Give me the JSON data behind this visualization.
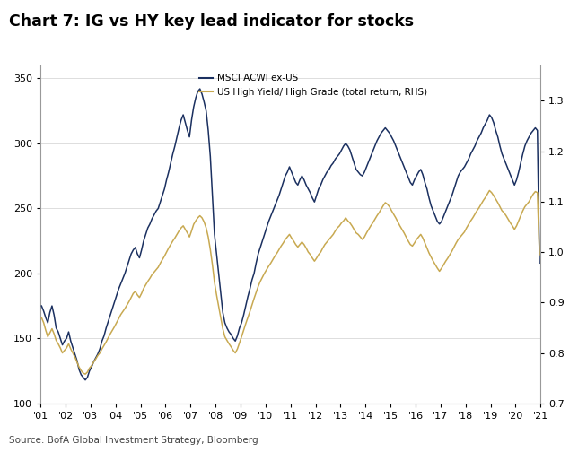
{
  "title": "Chart 7: IG vs HY key lead indicator for stocks",
  "source": "Source: BofA Global Investment Strategy, Bloomberg",
  "legend1": "MSCI ACWI ex-US",
  "legend2": "US High Yield/ High Grade (total return, RHS)",
  "color1": "#1b3060",
  "color2": "#c8a951",
  "ylim_left": [
    100,
    360
  ],
  "ylim_right": [
    0.7,
    1.37
  ],
  "yticks_left": [
    100,
    150,
    200,
    250,
    300,
    350
  ],
  "yticks_right": [
    0.7,
    0.8,
    0.9,
    1.0,
    1.1,
    1.2,
    1.3
  ],
  "xtick_labels": [
    "'01",
    "'02",
    "'03",
    "'04",
    "'05",
    "'06",
    "'07",
    "'08",
    "'09",
    "'10",
    "'11",
    "'12",
    "'13",
    "'14",
    "'15",
    "'16",
    "'17",
    "'18",
    "'19",
    "'20",
    "'21"
  ],
  "msci_monthly": [
    175,
    171,
    166,
    162,
    170,
    175,
    168,
    158,
    155,
    150,
    145,
    148,
    150,
    155,
    148,
    143,
    138,
    133,
    126,
    122,
    120,
    118,
    120,
    125,
    128,
    132,
    135,
    138,
    142,
    148,
    152,
    158,
    163,
    168,
    173,
    178,
    183,
    188,
    192,
    196,
    200,
    205,
    210,
    215,
    218,
    220,
    215,
    212,
    218,
    225,
    230,
    235,
    238,
    242,
    245,
    248,
    250,
    255,
    260,
    265,
    272,
    278,
    285,
    292,
    298,
    305,
    312,
    318,
    322,
    316,
    310,
    305,
    318,
    328,
    335,
    340,
    342,
    338,
    332,
    325,
    310,
    290,
    260,
    230,
    215,
    200,
    185,
    170,
    162,
    158,
    155,
    153,
    150,
    148,
    152,
    158,
    162,
    168,
    175,
    182,
    188,
    195,
    200,
    208,
    215,
    220,
    225,
    230,
    235,
    240,
    244,
    248,
    252,
    256,
    260,
    265,
    270,
    275,
    278,
    282,
    278,
    274,
    270,
    268,
    272,
    275,
    272,
    268,
    265,
    262,
    258,
    255,
    260,
    265,
    268,
    272,
    275,
    278,
    280,
    283,
    285,
    288,
    290,
    292,
    295,
    298,
    300,
    298,
    295,
    290,
    285,
    280,
    278,
    276,
    275,
    278,
    282,
    286,
    290,
    294,
    298,
    302,
    305,
    308,
    310,
    312,
    310,
    308,
    305,
    302,
    298,
    294,
    290,
    286,
    282,
    278,
    274,
    270,
    268,
    272,
    275,
    278,
    280,
    276,
    270,
    265,
    258,
    252,
    248,
    244,
    240,
    238,
    240,
    244,
    248,
    252,
    256,
    260,
    265,
    270,
    275,
    278,
    280,
    282,
    285,
    288,
    292,
    295,
    298,
    302,
    305,
    308,
    312,
    315,
    318,
    322,
    320,
    316,
    310,
    305,
    298,
    292,
    288,
    284,
    280,
    276,
    272,
    268,
    272,
    278,
    285,
    292,
    298,
    302,
    305,
    308,
    310,
    312,
    310,
    208
  ],
  "hyhg_monthly": [
    0.87,
    0.86,
    0.845,
    0.832,
    0.84,
    0.848,
    0.838,
    0.825,
    0.818,
    0.81,
    0.8,
    0.805,
    0.81,
    0.818,
    0.808,
    0.8,
    0.792,
    0.782,
    0.772,
    0.765,
    0.76,
    0.758,
    0.762,
    0.77,
    0.775,
    0.782,
    0.788,
    0.795,
    0.8,
    0.808,
    0.815,
    0.822,
    0.83,
    0.838,
    0.845,
    0.852,
    0.86,
    0.868,
    0.876,
    0.882,
    0.888,
    0.895,
    0.902,
    0.91,
    0.918,
    0.922,
    0.915,
    0.91,
    0.918,
    0.928,
    0.935,
    0.942,
    0.948,
    0.955,
    0.96,
    0.965,
    0.97,
    0.978,
    0.985,
    0.992,
    1.0,
    1.008,
    1.015,
    1.022,
    1.028,
    1.035,
    1.042,
    1.048,
    1.052,
    1.045,
    1.038,
    1.03,
    1.042,
    1.055,
    1.062,
    1.068,
    1.072,
    1.068,
    1.06,
    1.048,
    1.03,
    1.005,
    0.975,
    0.94,
    0.915,
    0.892,
    0.87,
    0.848,
    0.832,
    0.825,
    0.818,
    0.812,
    0.805,
    0.8,
    0.808,
    0.82,
    0.832,
    0.845,
    0.858,
    0.87,
    0.882,
    0.895,
    0.908,
    0.92,
    0.932,
    0.942,
    0.95,
    0.958,
    0.965,
    0.972,
    0.978,
    0.985,
    0.992,
    0.998,
    1.005,
    1.012,
    1.018,
    1.025,
    1.03,
    1.035,
    1.028,
    1.022,
    1.015,
    1.01,
    1.015,
    1.02,
    1.015,
    1.008,
    1.0,
    0.995,
    0.988,
    0.982,
    0.988,
    0.995,
    1.0,
    1.008,
    1.015,
    1.02,
    1.025,
    1.03,
    1.035,
    1.042,
    1.048,
    1.052,
    1.058,
    1.062,
    1.068,
    1.062,
    1.058,
    1.052,
    1.045,
    1.038,
    1.035,
    1.03,
    1.025,
    1.03,
    1.038,
    1.045,
    1.052,
    1.058,
    1.065,
    1.072,
    1.078,
    1.085,
    1.092,
    1.098,
    1.095,
    1.09,
    1.082,
    1.075,
    1.068,
    1.06,
    1.052,
    1.045,
    1.038,
    1.03,
    1.022,
    1.015,
    1.012,
    1.018,
    1.025,
    1.03,
    1.035,
    1.028,
    1.018,
    1.008,
    0.998,
    0.99,
    0.982,
    0.975,
    0.968,
    0.962,
    0.968,
    0.975,
    0.982,
    0.988,
    0.995,
    1.002,
    1.01,
    1.018,
    1.025,
    1.03,
    1.035,
    1.04,
    1.048,
    1.055,
    1.062,
    1.068,
    1.075,
    1.082,
    1.088,
    1.095,
    1.102,
    1.108,
    1.115,
    1.122,
    1.118,
    1.112,
    1.105,
    1.098,
    1.09,
    1.082,
    1.078,
    1.072,
    1.065,
    1.058,
    1.052,
    1.045,
    1.052,
    1.062,
    1.072,
    1.082,
    1.09,
    1.095,
    1.1,
    1.108,
    1.115,
    1.12,
    1.118,
    0.995
  ]
}
